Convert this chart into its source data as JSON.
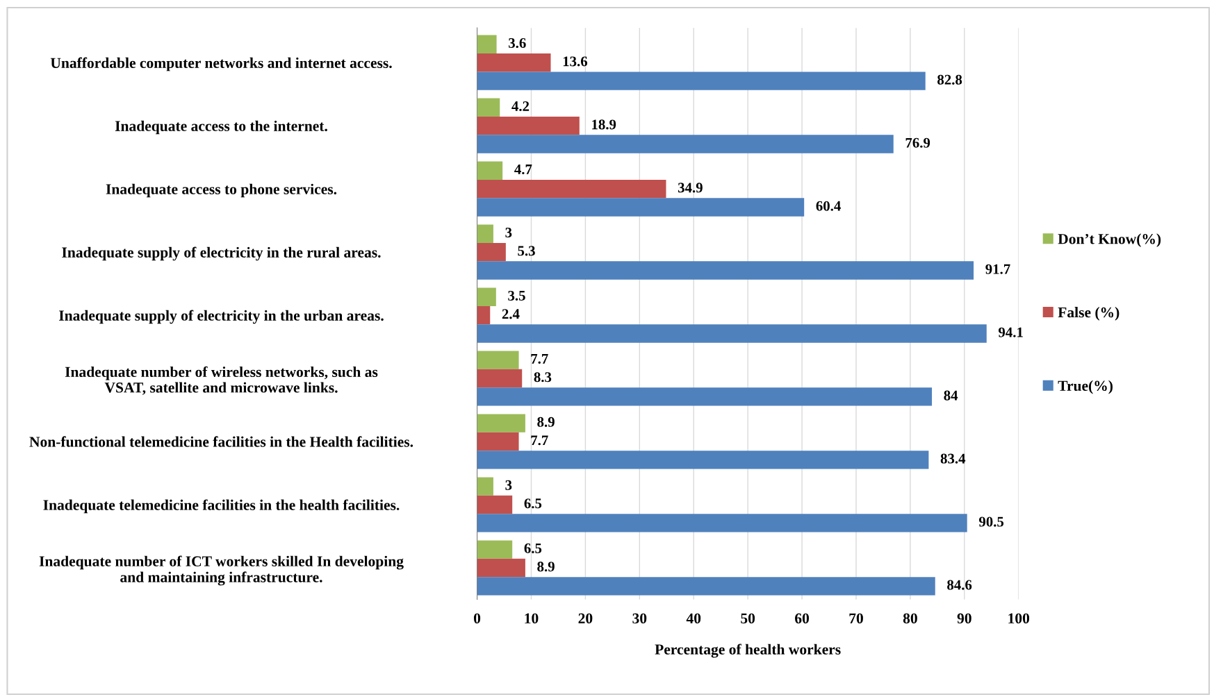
{
  "chart_data": {
    "type": "bar",
    "orientation": "horizontal",
    "categories": [
      "Unaffordable computer networks and internet access.",
      "Inadequate access to the internet.",
      "Inadequate access to phone services.",
      "Inadequate supply of electricity in the rural areas.",
      "Inadequate supply of electricity in the urban areas.",
      "Inadequate number of wireless networks, such as\nVSAT, satellite and microwave links.",
      "Non-functional telemedicine facilities in the Health facilities.",
      "Inadequate telemedicine facilities in the health facilities.",
      "Inadequate number of ICT workers skilled In developing\nand maintaining infrastructure."
    ],
    "series": [
      {
        "name": "Don’t Know(%)",
        "color": "#9bbb59",
        "values": [
          3.6,
          4.2,
          4.7,
          3,
          3.5,
          7.7,
          8.9,
          3,
          6.5
        ]
      },
      {
        "name": "False (%)",
        "color": "#c0504d",
        "values": [
          13.6,
          18.9,
          34.9,
          5.3,
          2.4,
          8.3,
          7.7,
          6.5,
          8.9
        ]
      },
      {
        "name": "True(%)",
        "color": "#4f81bd",
        "values": [
          82.8,
          76.9,
          60.4,
          91.7,
          94.1,
          84,
          83.4,
          90.5,
          84.6
        ]
      }
    ],
    "xlabel": "Percentage of health workers",
    "xlim": [
      0,
      100
    ],
    "xticks": [
      0,
      10,
      20,
      30,
      40,
      50,
      60,
      70,
      80,
      90,
      100
    ],
    "grid": "x",
    "legend": "right",
    "data_labels": true
  }
}
